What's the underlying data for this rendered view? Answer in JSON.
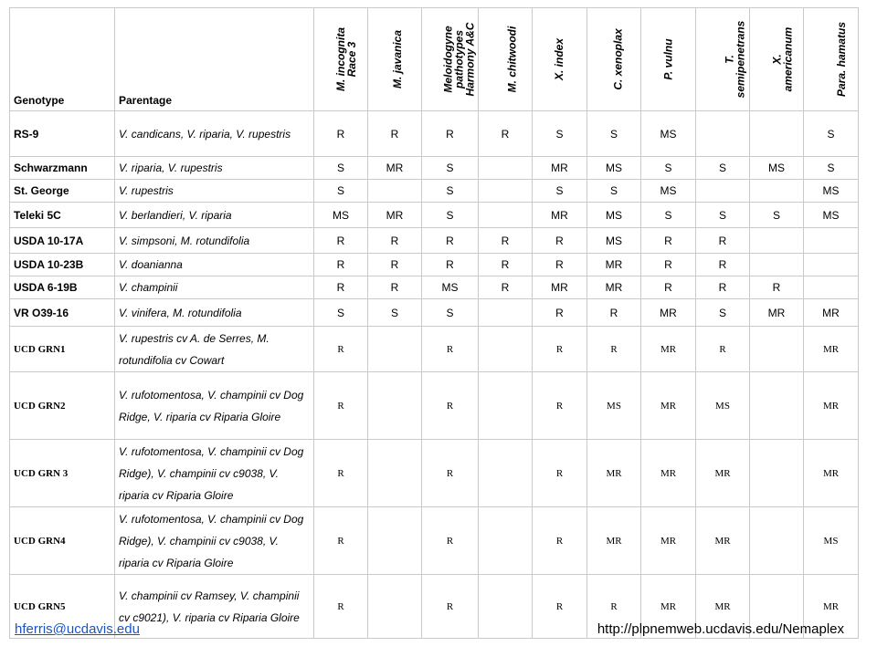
{
  "table": {
    "headers": {
      "genotype": "Genotype",
      "parentage": "Parentage",
      "nematodes": [
        [
          "M. incognita",
          "Race 3"
        ],
        [
          "M. javanica"
        ],
        [
          "Meloidogyne",
          "pathotypes",
          "Harmony A&C"
        ],
        [
          "M. chitwoodi"
        ],
        [
          "X. index"
        ],
        [
          "C. xenoplax"
        ],
        [
          "P. vulnu"
        ],
        [
          "T.",
          "semipenetrans"
        ],
        [
          "X.",
          "americanum"
        ],
        [
          "Para. hamatus"
        ]
      ]
    },
    "rows": [
      {
        "genotype": "RS-9",
        "parentage": "V. candicans, V. riparia, V. rupestris",
        "values": [
          "R",
          "R",
          "R",
          "R",
          "S",
          "S",
          "MS",
          "",
          "",
          "S"
        ]
      },
      {
        "genotype": "Schwarzmann",
        "parentage": "V. riparia, V. rupestris",
        "values": [
          "S",
          "MR",
          "S",
          "",
          "MR",
          "MS",
          "S",
          "S",
          "MS",
          "S"
        ]
      },
      {
        "genotype": "St. George",
        "parentage": "V. rupestris",
        "values": [
          "S",
          "",
          "S",
          "",
          "S",
          "S",
          "MS",
          "",
          "",
          "MS"
        ]
      },
      {
        "genotype": "Teleki 5C",
        "parentage": "V. berlandieri, V. riparia",
        "values": [
          "MS",
          "MR",
          "S",
          "",
          "MR",
          "MS",
          "S",
          "S",
          "S",
          "MS"
        ]
      },
      {
        "genotype": "USDA 10-17A",
        "parentage": "V. simpsoni, M. rotundifolia",
        "values": [
          "R",
          "R",
          "R",
          "R",
          "R",
          "MS",
          "R",
          "R",
          "",
          ""
        ]
      },
      {
        "genotype": "USDA 10-23B",
        "parentage": "V. doanianna",
        "values": [
          "R",
          "R",
          "R",
          "R",
          "R",
          "MR",
          "R",
          "R",
          "",
          ""
        ]
      },
      {
        "genotype": "USDA 6-19B",
        "parentage": "V. champinii",
        "values": [
          "R",
          "R",
          "MS",
          "R",
          "MR",
          "MR",
          "R",
          "R",
          "R",
          ""
        ]
      },
      {
        "genotype": "VR O39-16",
        "parentage": "V. vinifera, M. rotundifolia",
        "values": [
          "S",
          "S",
          "S",
          "",
          "R",
          "R",
          "MR",
          "S",
          "MR",
          "MR"
        ]
      },
      {
        "genotype": "UCD GRN1",
        "parentage": "V. rupestris cv A. de Serres, M. rotundifolia cv Cowart",
        "values": [
          "R",
          "",
          "R",
          "",
          "R",
          "R",
          "MR",
          "R",
          "",
          "MR"
        ]
      },
      {
        "genotype": "UCD GRN2",
        "parentage": "V. rufotomentosa, V. champinii cv Dog Ridge, V. riparia cv Riparia Gloire",
        "values": [
          "R",
          "",
          "R",
          "",
          "R",
          "MS",
          "MR",
          "MS",
          "",
          "MR"
        ]
      },
      {
        "genotype": "UCD GRN 3",
        "parentage": "V. rufotomentosa, V. champinii cv Dog Ridge), V. champinii cv c9038, V. riparia cv Riparia Gloire",
        "values": [
          "R",
          "",
          "R",
          "",
          "R",
          "MR",
          "MR",
          "MR",
          "",
          "MR"
        ]
      },
      {
        "genotype": "UCD GRN4",
        "parentage": "V. rufotomentosa, V. champinii cv Dog Ridge), V. champinii cv c9038, V. riparia cv Riparia Gloire",
        "values": [
          "R",
          "",
          "R",
          "",
          "R",
          "MR",
          "MR",
          "MR",
          "",
          "MS"
        ]
      },
      {
        "genotype": "UCD GRN5",
        "parentage": "V. champinii cv Ramsey, V. champinii cv c9021), V. riparia cv Riparia Gloire",
        "values": [
          "R",
          "",
          "R",
          "",
          "R",
          "R",
          "MR",
          "MR",
          "",
          "MR"
        ]
      }
    ]
  },
  "footer": {
    "email": "hferris@ucdavis.edu",
    "url": "http://plpnemweb.ucdavis.edu/Nemaplex"
  },
  "colors": {
    "link": "#1a54c4",
    "border": "#c9c9c9"
  }
}
